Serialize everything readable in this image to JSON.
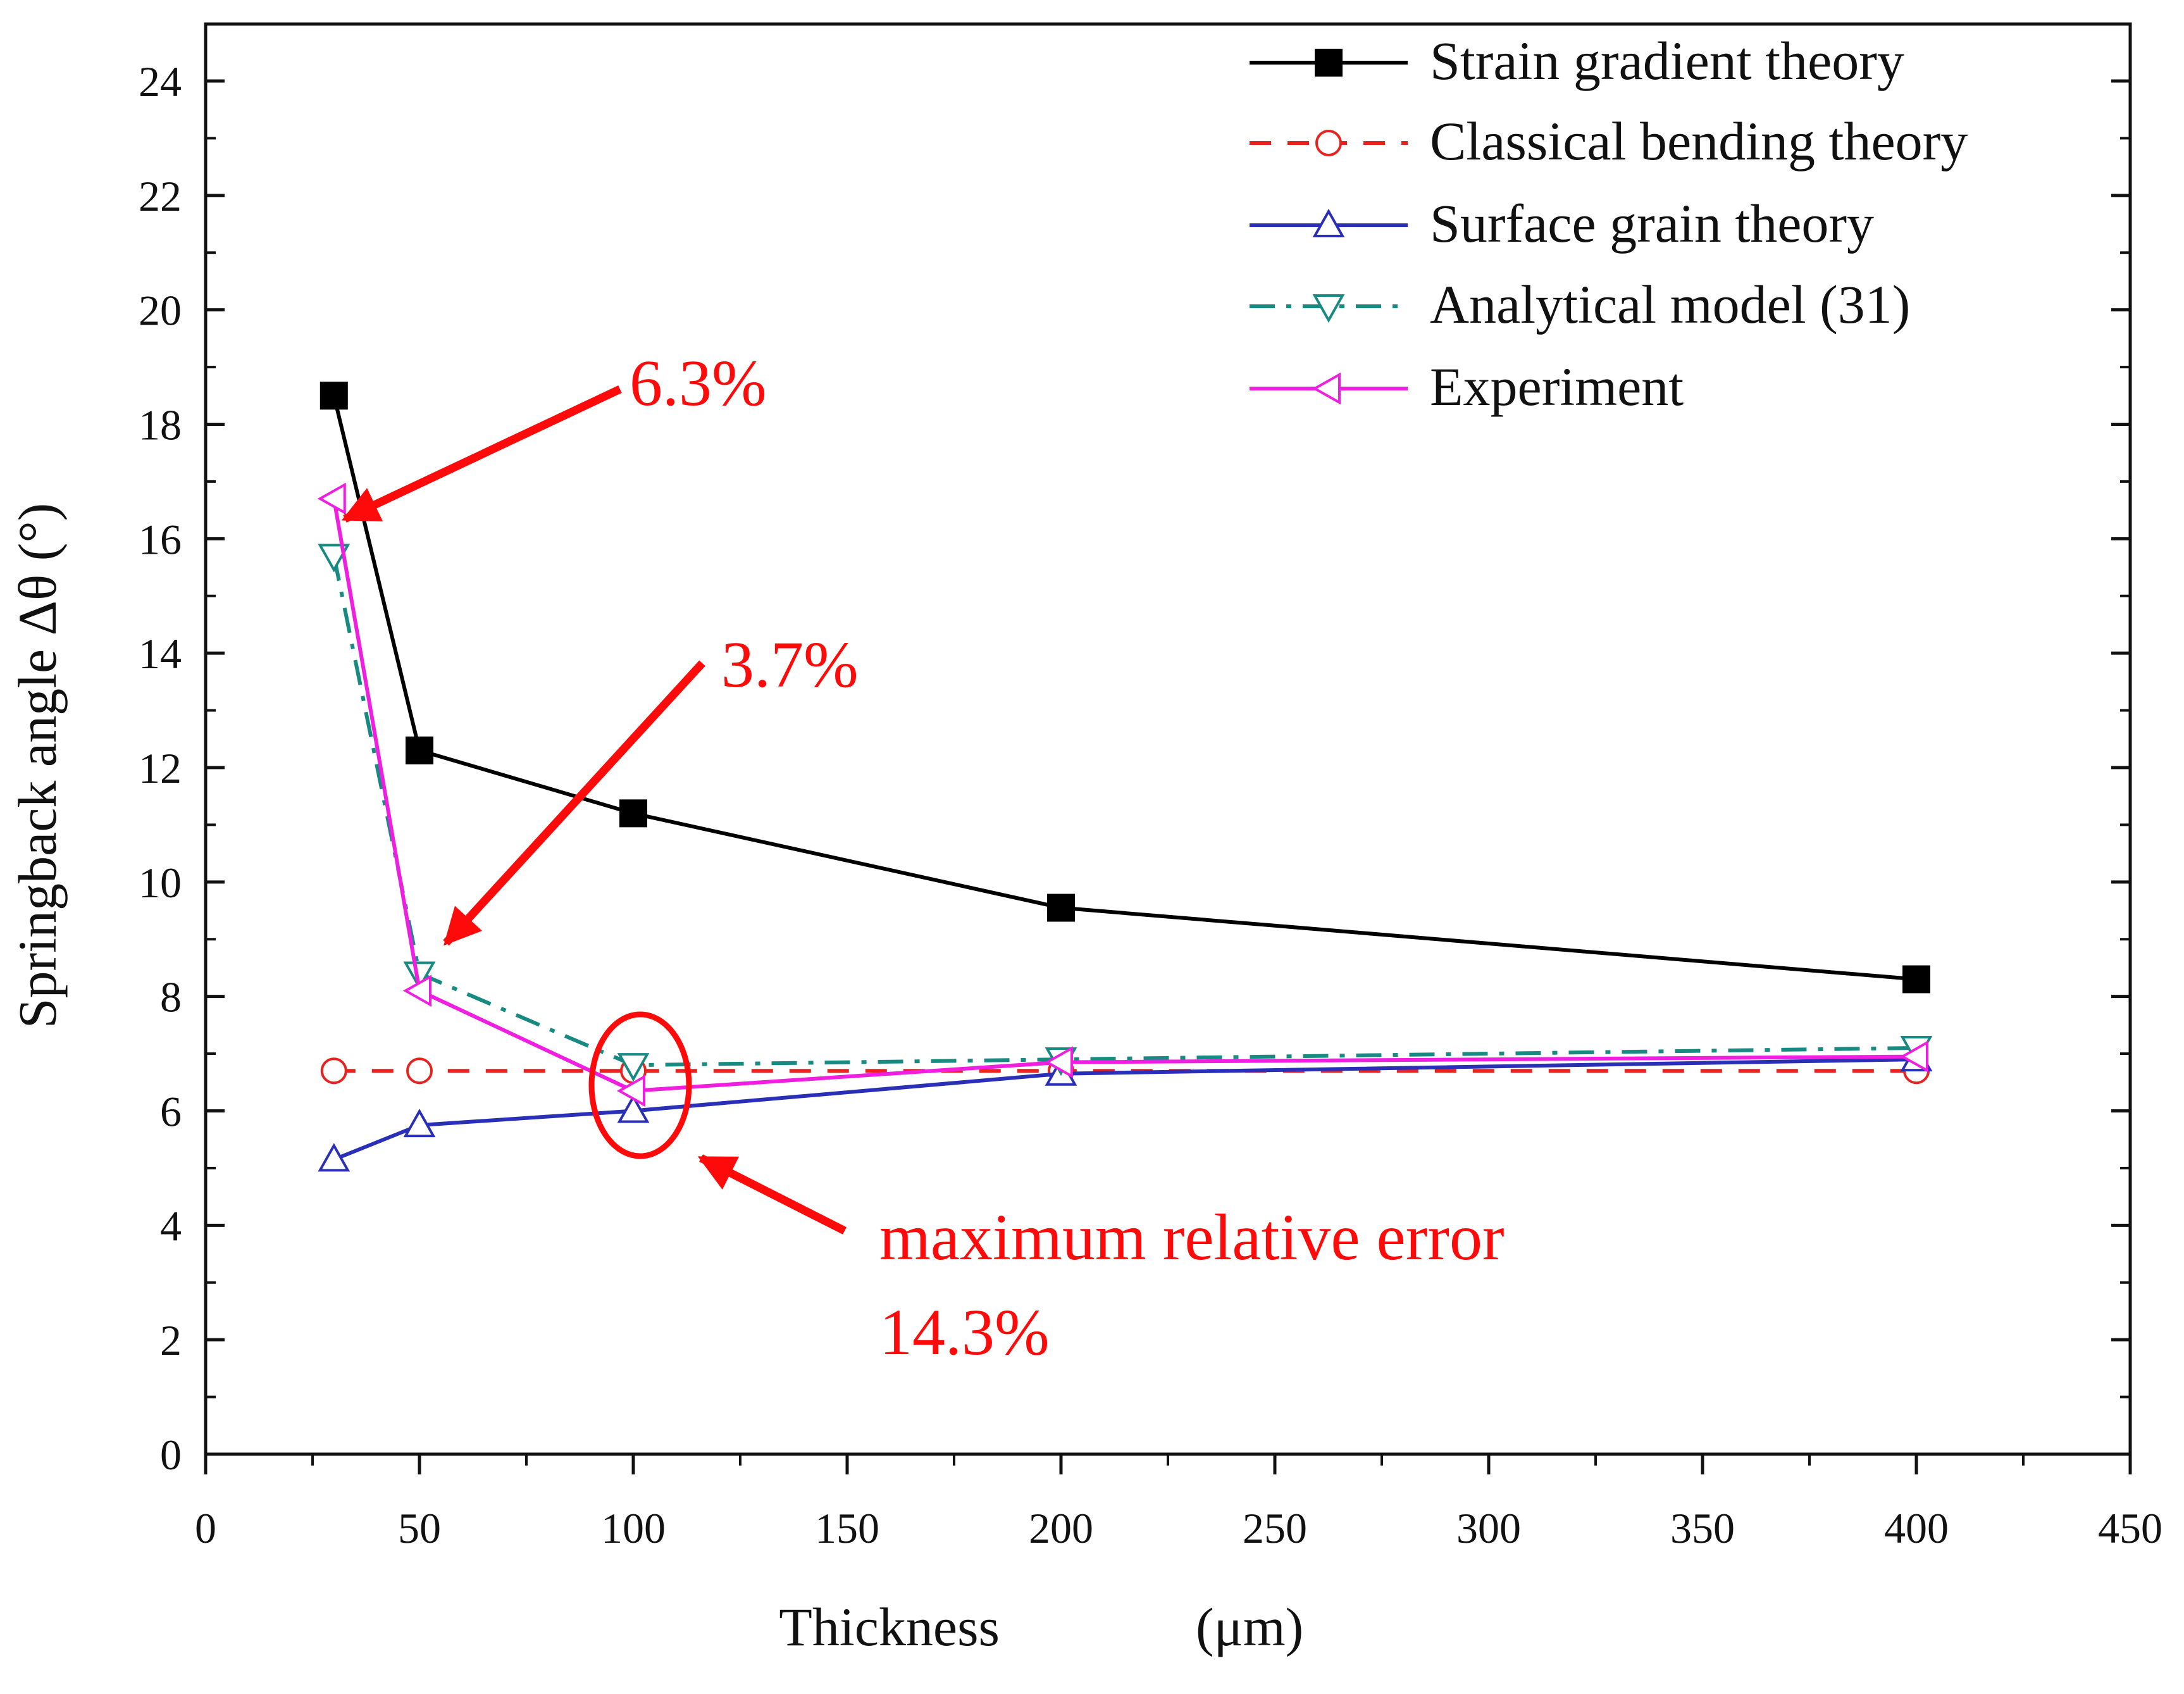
{
  "chart_data": {
    "type": "line",
    "title": "",
    "xlabel": "Thickness",
    "xlabel_unit": "(μm)",
    "ylabel": "Springback angle Δθ (°)",
    "xlim": [
      0,
      450
    ],
    "ylim": [
      0,
      25
    ],
    "xticks": [
      0,
      50,
      100,
      150,
      200,
      250,
      300,
      350,
      400,
      450
    ],
    "yticks": [
      0,
      2,
      4,
      6,
      8,
      10,
      12,
      14,
      16,
      18,
      20,
      22,
      24
    ],
    "x": [
      30,
      50,
      100,
      200,
      400
    ],
    "grid": false,
    "legend_position": "top-right",
    "colors": {
      "strain": "#000000",
      "classical": "#e8231f",
      "surface": "#2a2fb8",
      "analytical": "#178a82",
      "experiment": "#f01ee0",
      "annotation": "#ff0a0a"
    },
    "series": [
      {
        "name": "Strain gradient theory",
        "values": [
          18.5,
          12.3,
          11.2,
          9.55,
          8.3
        ],
        "marker": "filled-square",
        "line": "solid",
        "color": "#000000"
      },
      {
        "name": "Classical bending theory",
        "values": [
          6.7,
          6.7,
          6.7,
          6.7,
          6.7
        ],
        "marker": "open-circle",
        "line": "dashed",
        "color": "#e8231f"
      },
      {
        "name": "Surface grain theory",
        "values": [
          5.15,
          5.75,
          6.0,
          6.65,
          6.9
        ],
        "marker": "open-triangle-up",
        "line": "solid",
        "color": "#2a2fb8"
      },
      {
        "name": "Analytical model (31)",
        "values": [
          15.7,
          8.4,
          6.8,
          6.9,
          7.1
        ],
        "marker": "open-triangle-down",
        "line": "dash-dot",
        "color": "#178a82"
      },
      {
        "name": "Experiment",
        "values": [
          16.7,
          8.1,
          6.35,
          6.85,
          6.95
        ],
        "marker": "open-triangle-left",
        "line": "solid",
        "color": "#f01ee0"
      }
    ],
    "annotations": [
      {
        "text": "6.3%",
        "points_to": {
          "x": 30,
          "y": 16.3
        }
      },
      {
        "text": "3.7%",
        "points_to": {
          "x": 50,
          "y": 8.7
        }
      },
      {
        "text": "maximum relative error",
        "text2": "14.3%",
        "points_to": {
          "x": 100,
          "y": 6.3
        },
        "circle_around": {
          "x": 100,
          "y": 6.7
        }
      }
    ]
  }
}
